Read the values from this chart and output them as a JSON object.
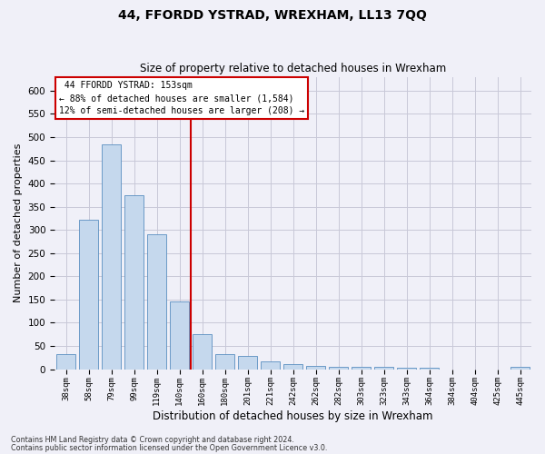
{
  "title": "44, FFORDD YSTRAD, WREXHAM, LL13 7QQ",
  "subtitle": "Size of property relative to detached houses in Wrexham",
  "xlabel": "Distribution of detached houses by size in Wrexham",
  "ylabel": "Number of detached properties",
  "categories": [
    "38sqm",
    "58sqm",
    "79sqm",
    "99sqm",
    "119sqm",
    "140sqm",
    "160sqm",
    "180sqm",
    "201sqm",
    "221sqm",
    "242sqm",
    "262sqm",
    "282sqm",
    "303sqm",
    "323sqm",
    "343sqm",
    "364sqm",
    "384sqm",
    "404sqm",
    "425sqm",
    "445sqm"
  ],
  "values": [
    32,
    322,
    484,
    375,
    290,
    145,
    75,
    32,
    29,
    17,
    10,
    6,
    5,
    5,
    5,
    3,
    3,
    0,
    0,
    0,
    5
  ],
  "bar_color": "#c5d8ed",
  "bar_edge_color": "#5a8fc0",
  "vline_x": 5.5,
  "vline_color": "#cc0000",
  "annotation_title": "44 FFORDD YSTRAD: 153sqm",
  "annotation_line1": "← 88% of detached houses are smaller (1,584)",
  "annotation_line2": "12% of semi-detached houses are larger (208) →",
  "annotation_box_color": "#ffffff",
  "annotation_box_edge": "#cc0000",
  "footer_line1": "Contains HM Land Registry data © Crown copyright and database right 2024.",
  "footer_line2": "Contains public sector information licensed under the Open Government Licence v3.0.",
  "bg_color": "#f0f0f8",
  "grid_color": "#c8c8d8",
  "title_fontsize": 10,
  "subtitle_fontsize": 8.5,
  "xlabel_fontsize": 8.5,
  "ylabel_fontsize": 8,
  "yticks": [
    0,
    50,
    100,
    150,
    200,
    250,
    300,
    350,
    400,
    450,
    500,
    550,
    600
  ],
  "ylim": [
    0,
    630
  ]
}
